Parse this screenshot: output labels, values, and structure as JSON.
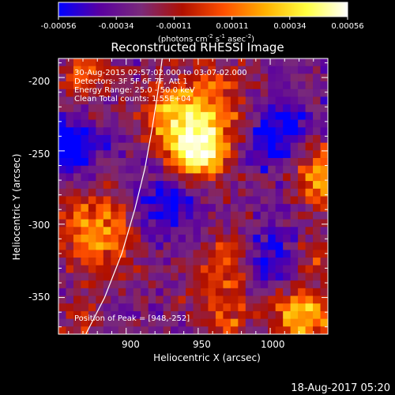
{
  "colorbar": {
    "ticks": [
      "-0.00056",
      "-0.00034",
      "-0.00011",
      "0.00011",
      "0.00034",
      "0.00056"
    ],
    "tick_values": [
      -0.00056,
      -0.00034,
      -0.00011,
      0.00011,
      0.00034,
      0.00056
    ],
    "unit_text": "(photons cm",
    "unit_parts": [
      "(photons cm",
      "-2",
      " s",
      "-1",
      " asec",
      "-2",
      ")"
    ],
    "colors": [
      "#0000ff",
      "#5a00a0",
      "#7a2a7a",
      "#b01000",
      "#ff5000",
      "#ffb000",
      "#ffff40",
      "#ffffff"
    ]
  },
  "info": {
    "line1": "30-Aug-2015 02:57:02.000 to 03:07:02.000",
    "line2": "Detectors: 3F 5F 6F 7F, Att 1",
    "line3": "Energy Range: 25.0 - 50.0 keV",
    "line4": "Clean     Total counts: 1.55E+04",
    "peak": "Position of Peak = [948,-252]"
  },
  "timestamp": "18-Aug-2017 05:20",
  "chart_data": {
    "type": "heatmap",
    "title": "Reconstructed RHESSI Image",
    "xlabel": "Heliocentric X (arcsec)",
    "ylabel": "Heliocentric Y (arcsec)",
    "xlim": [
      853,
      1040
    ],
    "ylim": [
      -375,
      -187
    ],
    "xticks": [
      900,
      950,
      1000
    ],
    "yticks": [
      -200,
      -250,
      -300,
      -350
    ],
    "xtick_labels": [
      "900",
      "950",
      "1000"
    ],
    "ytick_labels": [
      "-200",
      "-250",
      "-300",
      "-350"
    ],
    "value_range": [
      -0.00056,
      0.00056
    ],
    "peak": [
      948,
      -252
    ],
    "limb_curve": [
      [
        872,
        -375
      ],
      [
        885,
        -350
      ],
      [
        897,
        -320
      ],
      [
        906,
        -290
      ],
      [
        913,
        -262
      ],
      [
        918,
        -235
      ],
      [
        922,
        -210
      ],
      [
        925,
        -187
      ]
    ],
    "sources": [
      {
        "x": 948,
        "y": -252,
        "amplitude": 1.0,
        "sigma": 15
      },
      {
        "x": 958,
        "y": -222,
        "amplitude": 0.6,
        "sigma": 20
      },
      {
        "x": 930,
        "y": -225,
        "amplitude": 0.5,
        "sigma": 14
      },
      {
        "x": 1035,
        "y": -265,
        "amplitude": 0.75,
        "sigma": 14
      },
      {
        "x": 1030,
        "y": -320,
        "amplitude": 0.4,
        "sigma": 10
      },
      {
        "x": 1023,
        "y": -362,
        "amplitude": 0.85,
        "sigma": 14
      },
      {
        "x": 880,
        "y": -305,
        "amplitude": 0.65,
        "sigma": 20
      },
      {
        "x": 870,
        "y": -200,
        "amplitude": 0.45,
        "sigma": 12
      },
      {
        "x": 968,
        "y": -330,
        "amplitude": 0.45,
        "sigma": 18
      },
      {
        "x": 968,
        "y": -365,
        "amplitude": 0.4,
        "sigma": 12
      },
      {
        "x": 868,
        "y": -365,
        "amplitude": 0.35,
        "sigma": 10
      }
    ],
    "sinks": [
      {
        "x": 862,
        "y": -248,
        "amplitude": -0.6,
        "sigma": 14
      },
      {
        "x": 1005,
        "y": -240,
        "amplitude": -0.55,
        "sigma": 18
      },
      {
        "x": 930,
        "y": -285,
        "amplitude": -0.5,
        "sigma": 18
      },
      {
        "x": 1000,
        "y": -325,
        "amplitude": -0.45,
        "sigma": 16
      }
    ]
  }
}
